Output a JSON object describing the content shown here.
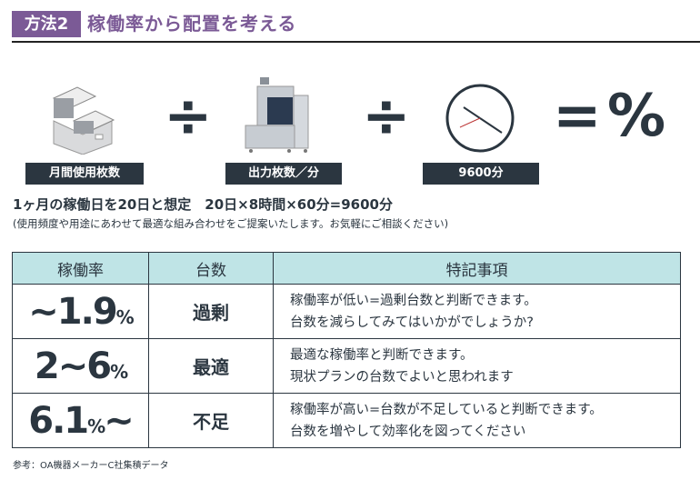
{
  "header": {
    "badge": "方法2",
    "title": "稼働率から配置を考える",
    "accent_color": "#7b5a96"
  },
  "formula": {
    "items": [
      {
        "icon": "paper-stack-icon",
        "label": "月間使用枚数"
      },
      {
        "icon": "copier-icon",
        "label": "出力枚数／分"
      },
      {
        "icon": "clock-icon",
        "label": "9600分"
      }
    ],
    "divide": "÷",
    "equals": "=",
    "percent": "%"
  },
  "assumption": "1ヶ月の稼働日を20日と想定　20日×8時間×60分=9600分",
  "note": "(使用頻度や用途にあわせて最適な組み合わせをご提案いたします。お気軽にご相談ください)",
  "table": {
    "headers": [
      "稼働率",
      "台数",
      "特記事項"
    ],
    "header_color": "#bfe4e6",
    "rows": [
      {
        "rate_pre": "~1.9",
        "rate_unit": "%",
        "rate_post": "",
        "units": "過剰",
        "notes": [
          "稼働率が低い=過剰台数と判断できます。",
          "台数を減らしてみてはいかがでしょうか?"
        ]
      },
      {
        "rate_pre": "2~6",
        "rate_unit": "%",
        "rate_post": "",
        "units": "最適",
        "notes": [
          "最適な稼働率と判断できます。",
          "現状プランの台数でよいと思われます"
        ]
      },
      {
        "rate_pre": "6.1",
        "rate_unit": "%",
        "rate_post": "~",
        "units": "不足",
        "notes": [
          "稼働率が高い=台数が不足していると判断できます。",
          "台数を増やして効率化を図ってください"
        ]
      }
    ]
  },
  "footer": "参考：OA機器メーカーC社集積データ"
}
